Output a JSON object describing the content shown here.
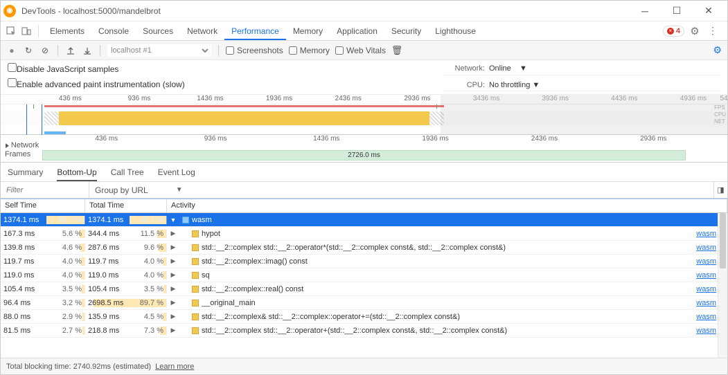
{
  "window": {
    "title": "DevTools - localhost:5000/mandelbrot"
  },
  "tabs": {
    "items": [
      "Elements",
      "Console",
      "Sources",
      "Network",
      "Performance",
      "Memory",
      "Application",
      "Security",
      "Lighthouse"
    ],
    "active": "Performance",
    "error_count": "4"
  },
  "perfbar": {
    "target": "localhost #1",
    "screenshots": "Screenshots",
    "memory": "Memory",
    "webvitals": "Web Vitals"
  },
  "options": {
    "disable_js": "Disable JavaScript samples",
    "enable_paint": "Enable advanced paint instrumentation (slow)",
    "network_label": "Network:",
    "network_value": "Online",
    "cpu_label": "CPU:",
    "cpu_value": "No throttling"
  },
  "overview": {
    "ticks": [
      "436 ms",
      "936 ms",
      "1436 ms",
      "1936 ms",
      "2436 ms",
      "2936 ms"
    ],
    "ticks_positions_pct": [
      8,
      17.5,
      27,
      36.5,
      46,
      55.5
    ],
    "ticks_right": [
      "3436 ms",
      "3936 ms",
      "4436 ms",
      "4936 ms",
      "54"
    ],
    "ticks_right_positions_pct": [
      65,
      74.5,
      84,
      93.5,
      99
    ],
    "lanes": [
      "FPS",
      "CPU",
      "NET"
    ]
  },
  "detail": {
    "ticks": [
      "436 ms",
      "936 ms",
      "1436 ms",
      "1936 ms",
      "2436 ms",
      "2936 ms"
    ],
    "ticks_positions_pct": [
      13,
      28,
      43,
      58,
      73,
      88
    ],
    "net_label": "Network",
    "frames_label": "Frames",
    "total": "2726.0 ms"
  },
  "subtabs": {
    "items": [
      "Summary",
      "Bottom-Up",
      "Call Tree",
      "Event Log"
    ],
    "active": "Bottom-Up"
  },
  "filter": {
    "placeholder": "Filter",
    "group_label": "Group by URL"
  },
  "table": {
    "headers": {
      "self": "Self Time",
      "total": "Total Time",
      "activity": "Activity"
    },
    "rows": [
      {
        "self_time": "1374.1 ms",
        "self_pct": "45.7 %",
        "self_bar": 45.7,
        "total_time": "1374.1 ms",
        "total_pct": "45.7 %",
        "total_bar": 45.7,
        "indent": 0,
        "expanded": true,
        "name": "wasm",
        "link": "",
        "selected": true
      },
      {
        "self_time": "167.3 ms",
        "self_pct": "5.6 %",
        "self_bar": 5.6,
        "total_time": "344.4 ms",
        "total_pct": "11.5 %",
        "total_bar": 11.5,
        "indent": 1,
        "expanded": false,
        "name": "hypot",
        "link": "wasm"
      },
      {
        "self_time": "139.8 ms",
        "self_pct": "4.6 %",
        "self_bar": 4.6,
        "total_time": "287.6 ms",
        "total_pct": "9.6 %",
        "total_bar": 9.6,
        "indent": 1,
        "expanded": false,
        "name": "std::__2::complex<double> std::__2::operator*<double>(std::__2::complex<double> const&, std::__2::complex<double> const&)",
        "link": "wasm"
      },
      {
        "self_time": "119.7 ms",
        "self_pct": "4.0 %",
        "self_bar": 4.0,
        "total_time": "119.7 ms",
        "total_pct": "4.0 %",
        "total_bar": 4.0,
        "indent": 1,
        "expanded": false,
        "name": "std::__2::complex<double>::imag() const",
        "link": "wasm"
      },
      {
        "self_time": "119.0 ms",
        "self_pct": "4.0 %",
        "self_bar": 4.0,
        "total_time": "119.0 ms",
        "total_pct": "4.0 %",
        "total_bar": 4.0,
        "indent": 1,
        "expanded": false,
        "name": "sq",
        "link": "wasm"
      },
      {
        "self_time": "105.4 ms",
        "self_pct": "3.5 %",
        "self_bar": 3.5,
        "total_time": "105.4 ms",
        "total_pct": "3.5 %",
        "total_bar": 3.5,
        "indent": 1,
        "expanded": false,
        "name": "std::__2::complex<double>::real() const",
        "link": "wasm"
      },
      {
        "self_time": "96.4 ms",
        "self_pct": "3.2 %",
        "self_bar": 3.2,
        "total_time": "2698.5 ms",
        "total_pct": "89.7 %",
        "total_bar": 89.7,
        "indent": 1,
        "expanded": false,
        "name": "__original_main",
        "link": "wasm"
      },
      {
        "self_time": "88.0 ms",
        "self_pct": "2.9 %",
        "self_bar": 2.9,
        "total_time": "135.9 ms",
        "total_pct": "4.5 %",
        "total_bar": 4.5,
        "indent": 1,
        "expanded": false,
        "name": "std::__2::complex<double>& std::__2::complex<double>::operator+=<double>(std::__2::complex<double> const&)",
        "link": "wasm"
      },
      {
        "self_time": "81.5 ms",
        "self_pct": "2.7 %",
        "self_bar": 2.7,
        "total_time": "218.8 ms",
        "total_pct": "7.3 %",
        "total_bar": 7.3,
        "indent": 1,
        "expanded": false,
        "name": "std::__2::complex<double> std::__2::operator+<double>(std::__2::complex<double> const&, std::__2::complex<double> const&)",
        "link": "wasm"
      }
    ]
  },
  "status": {
    "text": "Total blocking time: 2740.92ms (estimated)",
    "learn": "Learn more"
  },
  "colors": {
    "accent": "#1a73e8",
    "cpu_bar": "#f2c94c",
    "frames_bg": "#d4edda",
    "selected_row": "#1a73e8",
    "bar_fill": "#ffe8b3"
  }
}
